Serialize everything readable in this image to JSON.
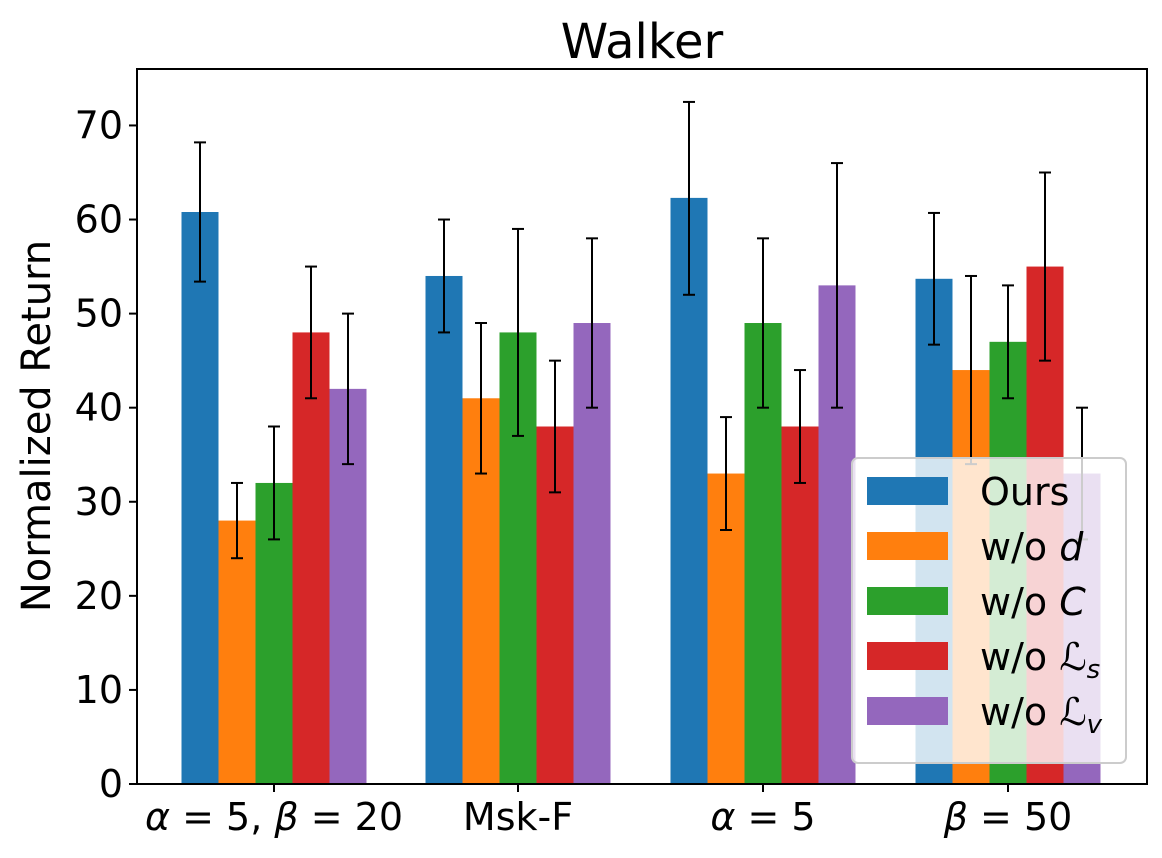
{
  "chart_data": {
    "type": "bar",
    "title": "Walker",
    "xlabel": "",
    "ylabel": "Normalized Return",
    "ylim": [
      0,
      76
    ],
    "yticks": [
      0,
      10,
      20,
      30,
      40,
      50,
      60,
      70
    ],
    "categories": [
      {
        "parts": [
          [
            "α",
            true
          ],
          [
            " = 5, ",
            false
          ],
          [
            "β",
            true
          ],
          [
            " = 20",
            false
          ]
        ],
        "text": "α = 5, β = 20"
      },
      {
        "parts": [
          [
            "Msk-F",
            false
          ]
        ],
        "text": "Msk-F"
      },
      {
        "parts": [
          [
            "α",
            true
          ],
          [
            " = 5",
            false
          ]
        ],
        "text": "α = 5"
      },
      {
        "parts": [
          [
            "β",
            true
          ],
          [
            " = 50",
            false
          ]
        ],
        "text": "β = 50"
      }
    ],
    "series": [
      {
        "name": "Ours",
        "label_main": "Ours",
        "label_var": "",
        "label_sub": "",
        "color": "#1f77b4",
        "values": [
          60.8,
          54,
          62.3,
          53.7
        ],
        "err_low": [
          53.4,
          48,
          52,
          46.7
        ],
        "err_high": [
          68.2,
          60,
          72.5,
          60.7
        ]
      },
      {
        "name": "w/o d",
        "label_main": "w/o ",
        "label_var": "d",
        "label_sub": "",
        "color": "#ff7f0e",
        "values": [
          28,
          41,
          33,
          44
        ],
        "err_low": [
          24,
          33,
          27,
          34
        ],
        "err_high": [
          32,
          49,
          39,
          54
        ]
      },
      {
        "name": "w/o C",
        "label_main": "w/o ",
        "label_var": "C",
        "label_sub": "",
        "color": "#2ca02c",
        "values": [
          32,
          48,
          49,
          47
        ],
        "err_low": [
          26,
          37,
          40,
          41
        ],
        "err_high": [
          38,
          59,
          58,
          53
        ]
      },
      {
        "name": "w/o Ls",
        "label_main": "w/o ",
        "label_var": "ℒ",
        "label_sub": "s",
        "color": "#d62728",
        "values": [
          48,
          38,
          38,
          55
        ],
        "err_low": [
          41,
          31,
          32,
          45
        ],
        "err_high": [
          55,
          45,
          44,
          65
        ]
      },
      {
        "name": "w/o Lv",
        "label_main": "w/o ",
        "label_var": "ℒ",
        "label_sub": "v",
        "color": "#9467bd",
        "values": [
          42,
          49,
          53,
          33
        ],
        "err_low": [
          34,
          40,
          40,
          26
        ],
        "err_high": [
          50,
          58,
          66,
          40
        ]
      }
    ],
    "legend_position": "lower-right",
    "grid": false
  }
}
